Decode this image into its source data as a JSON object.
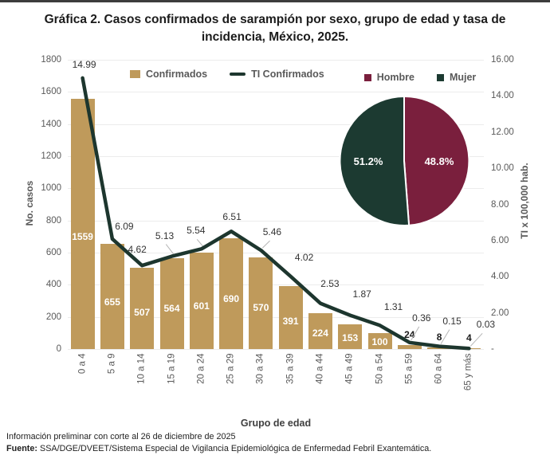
{
  "title": "Gráfica 2. Casos confirmados de sarampión por sexo, grupo de edad y tasa de incidencia, México, 2025.",
  "footer": {
    "line1": "Información preliminar con corte al 26 de diciembre de 2025",
    "fuente_label": "Fuente:",
    "fuente_text": " SSA/DGE/DVEET/Sistema Especial de Vigilancia Epidemiológica de Enfermedad Febril Exantemática."
  },
  "colors": {
    "bar": "#BF9A5B",
    "line": "#1d362e",
    "hombre": "#7A1F3D",
    "mujer": "#1C3A31",
    "grid": "#ececec",
    "tick_text": "#595959",
    "leader": "#b5b5b5"
  },
  "chart_data": [
    {
      "type": "bar",
      "categories": [
        "0 a 4",
        "5 a 9",
        "10 a 14",
        "15 a 19",
        "20 a 24",
        "25 a 29",
        "30 a 34",
        "35 a 39",
        "40 a 44",
        "45 a 49",
        "50 a 54",
        "55 a 59",
        "60 a 64",
        "65 y más"
      ],
      "series": [
        {
          "name": "Confirmados",
          "type": "bar",
          "axis": "left",
          "values": [
            1559,
            655,
            507,
            564,
            601,
            690,
            570,
            391,
            224,
            153,
            100,
            24,
            8,
            4
          ]
        },
        {
          "name": "TI Confirmados",
          "type": "line",
          "axis": "right",
          "values": [
            14.99,
            6.09,
            4.62,
            5.13,
            5.54,
            6.51,
            5.46,
            4.02,
            2.53,
            1.87,
            1.31,
            0.36,
            0.15,
            0.03
          ]
        }
      ],
      "xlabel": "Grupo de edad",
      "ylabel_left": "No. casos",
      "ylabel_right": "TI x 100,000 hab.",
      "ylim_left": [
        0,
        1800
      ],
      "ytick_step_left": 200,
      "ylim_right": [
        0,
        16
      ],
      "ytick_step_right": 2,
      "right_zero_label": "-",
      "grid": true,
      "legend_position": "top"
    },
    {
      "type": "pie",
      "labels": [
        "Hombre",
        "Mujer"
      ],
      "values": [
        48.8,
        51.2
      ],
      "value_labels": [
        "48.8%",
        "51.2%"
      ],
      "slice_colors": [
        "#7A1F3D",
        "#1C3A31"
      ],
      "legend_position": "top"
    }
  ]
}
